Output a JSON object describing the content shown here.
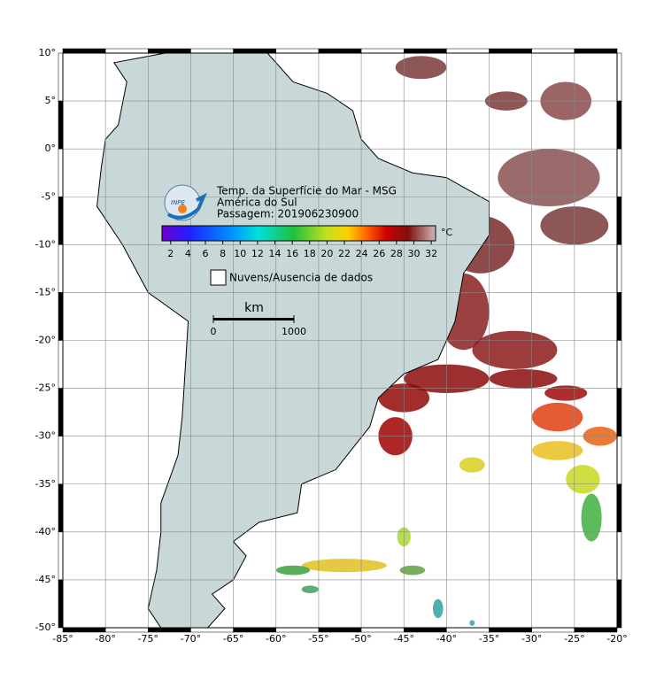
{
  "map": {
    "lon_lim": [
      -85,
      -20
    ],
    "lat_lim": [
      -50,
      10
    ],
    "lon_ticks": [
      {
        "value": -85,
        "label": "-85°"
      },
      {
        "value": -80,
        "label": "-80°"
      },
      {
        "value": -75,
        "label": "-75°"
      },
      {
        "value": -70,
        "label": "-70°"
      },
      {
        "value": -65,
        "label": "-65°"
      },
      {
        "value": -60,
        "label": "-60°"
      },
      {
        "value": -55,
        "label": "-55°"
      },
      {
        "value": -50,
        "label": "-50°"
      },
      {
        "value": -45,
        "label": "-45°"
      },
      {
        "value": -40,
        "label": "-40°"
      },
      {
        "value": -35,
        "label": "-35°"
      },
      {
        "value": -30,
        "label": "-30°"
      },
      {
        "value": -25,
        "label": "-25°"
      },
      {
        "value": -20,
        "label": "-20°"
      }
    ],
    "lat_ticks": [
      {
        "value": 10,
        "label": "10°"
      },
      {
        "value": 5,
        "label": "5°"
      },
      {
        "value": 0,
        "label": "0°"
      },
      {
        "value": -5,
        "label": "-5°"
      },
      {
        "value": -10,
        "label": "-10°"
      },
      {
        "value": -15,
        "label": "-15°"
      },
      {
        "value": -20,
        "label": "-20°"
      },
      {
        "value": -25,
        "label": "-25°"
      },
      {
        "value": -30,
        "label": "-30°"
      },
      {
        "value": -35,
        "label": "-35°"
      },
      {
        "value": -40,
        "label": "-40°"
      },
      {
        "value": -45,
        "label": "-45°"
      },
      {
        "value": -50,
        "label": "-50°"
      }
    ]
  },
  "legend": {
    "logo": "INPE",
    "title_lines": [
      "Temp. da Superfície do Mar - MSG",
      "América do Sul",
      "Passagem: 201906230900"
    ],
    "colorbar": {
      "lim": [
        1,
        32.5
      ],
      "ticks": [
        2,
        4,
        6,
        8,
        10,
        12,
        14,
        16,
        18,
        20,
        22,
        24,
        26,
        28,
        30,
        32
      ],
      "unit": "°C"
    },
    "cloud_label": "Nuvens/Ausencia de dados",
    "scale": {
      "unit": "km",
      "ticks": [
        0,
        1000
      ]
    }
  }
}
